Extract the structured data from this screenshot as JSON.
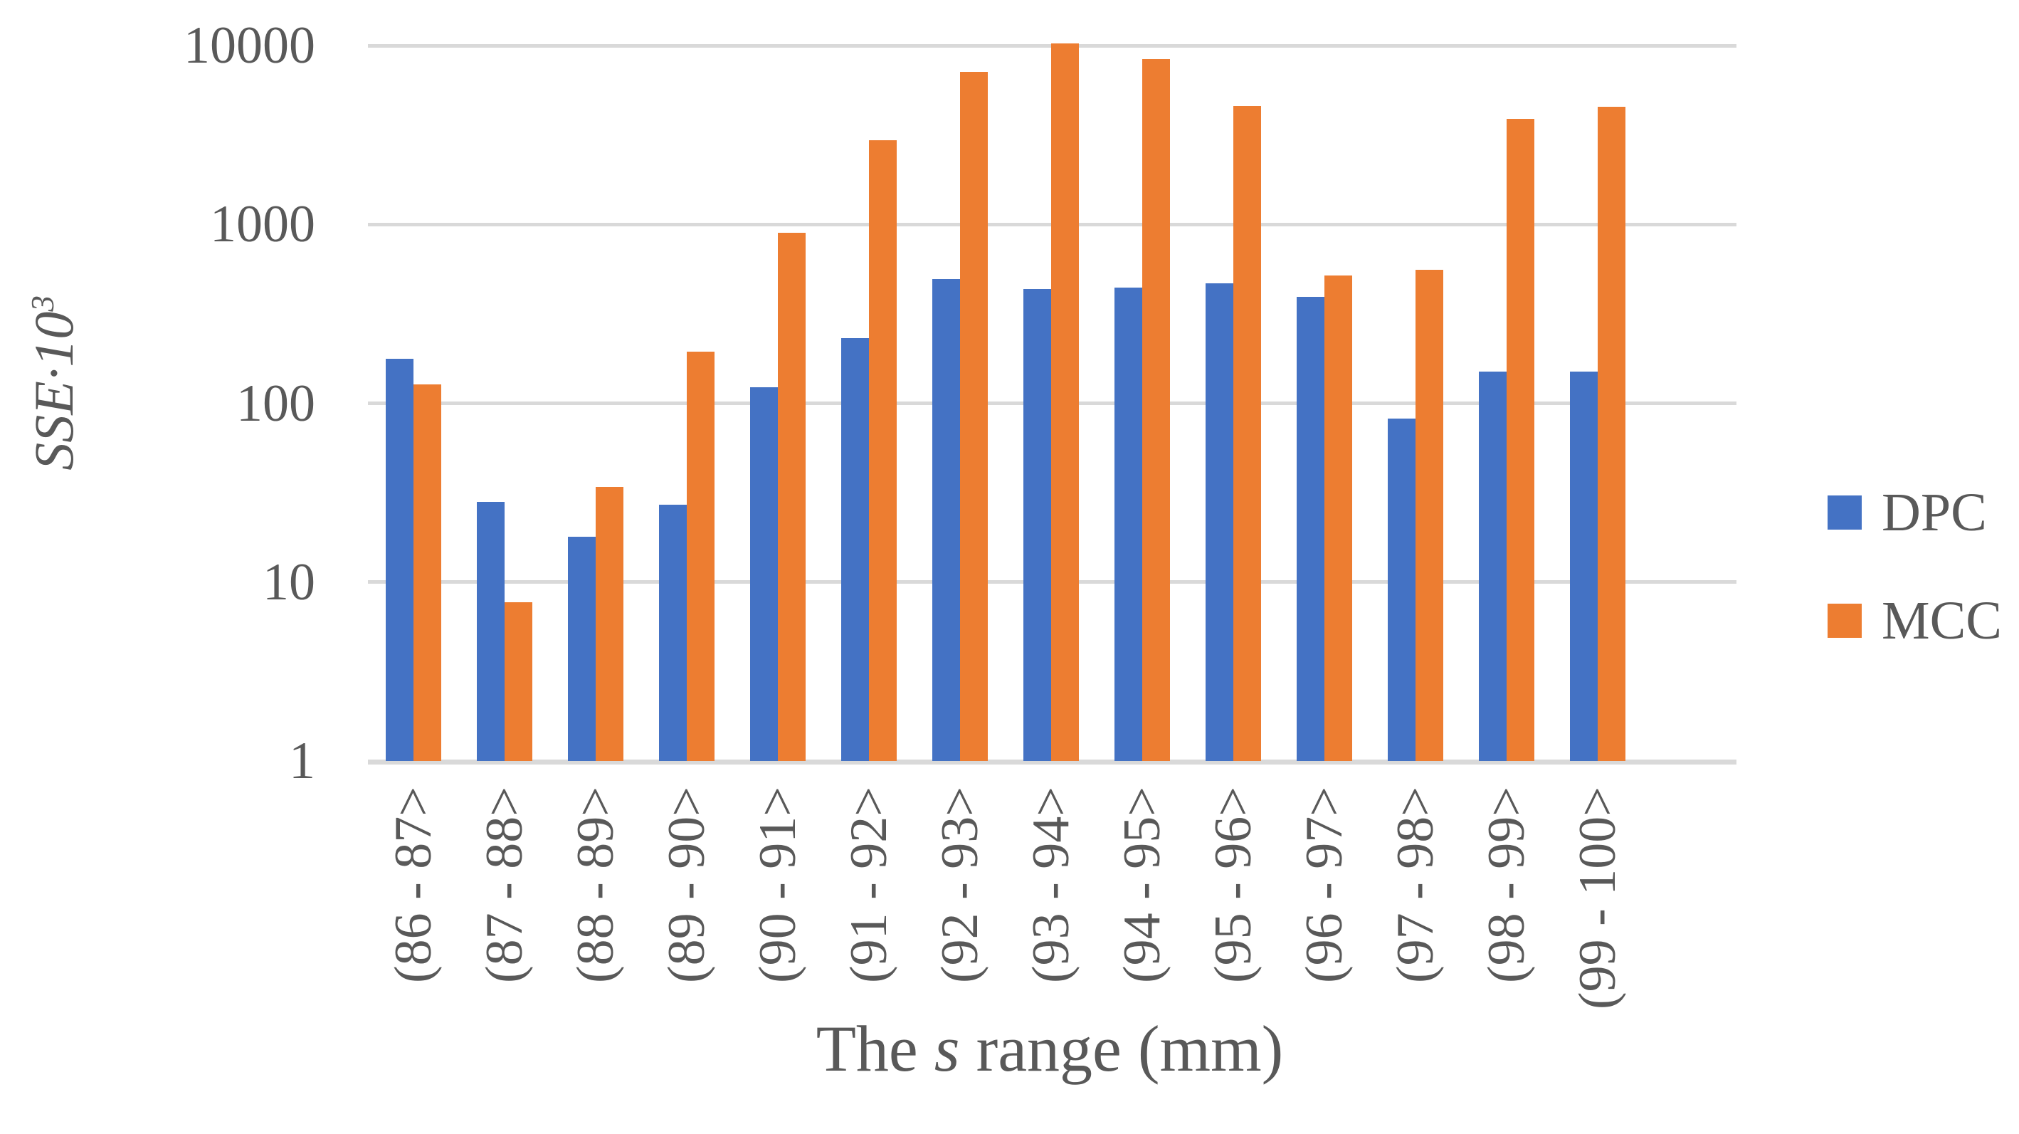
{
  "chart_data": {
    "type": "bar",
    "scale": "log",
    "title": "",
    "xlabel": "The s range (mm)",
    "xlabel_parts": {
      "pre": "The ",
      "italic": "s",
      "post": " range (mm)"
    },
    "ylabel": "SSE·10³",
    "ylabel_parts": {
      "base": "SSE·10",
      "sup": "3"
    },
    "categories": [
      "(86 - 87>",
      "(87 - 88>",
      "(88 - 89>",
      "(89 - 90>",
      "(90 - 91>",
      "(91 - 92>",
      "(92 - 93>",
      "(93 - 94>",
      "(94 - 95>",
      "(95 - 96>",
      "(96 - 97>",
      "(97 - 98>",
      "(98 - 99>",
      "(99 - 100>"
    ],
    "series": [
      {
        "name": "DPC",
        "color": "#4472C4",
        "values": [
          178,
          28,
          18,
          27,
          123,
          232,
          495,
          436,
          443,
          470,
          394,
          82,
          150,
          150
        ]
      },
      {
        "name": "MCC",
        "color": "#ED7D31",
        "values": [
          128,
          7.7,
          34,
          195,
          900,
          2950,
          7100,
          10300,
          8400,
          4570,
          520,
          557,
          3890,
          4550
        ]
      }
    ],
    "ylim": [
      1,
      10000
    ],
    "ytick_labels": [
      "10000",
      "1000",
      "100",
      "10",
      "1"
    ],
    "ytick_values": [
      10000,
      1000,
      100,
      10,
      1
    ],
    "grid": true,
    "legend_position": "right"
  },
  "colors": {
    "grid": "#D9D9D9",
    "text": "#595959",
    "background": "#FFFFFF",
    "dpc": "#4472C4",
    "mcc": "#ED7D31"
  }
}
